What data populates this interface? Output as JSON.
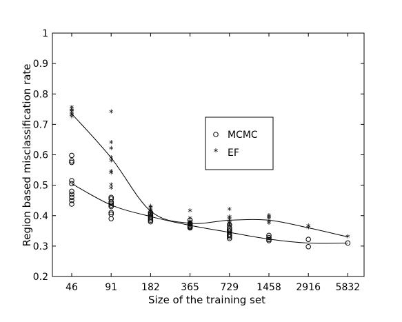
{
  "chart_data": {
    "type": "scatter",
    "xlabel": "Size of the training set",
    "ylabel": "Region based misclassification rate",
    "categories": [
      "46",
      "91",
      "182",
      "365",
      "729",
      "1458",
      "2916",
      "5832"
    ],
    "ylim": [
      0.2,
      1.0
    ],
    "yticks": [
      "0.2",
      "0.3",
      "0.4",
      "0.5",
      "0.6",
      "0.7",
      "0.8",
      "0.9",
      "1"
    ],
    "grid": false,
    "legend_position": "center-right",
    "series": [
      {
        "name": "MCMC",
        "marker": "circle",
        "trend": [
          0.505,
          0.435,
          0.397,
          0.368,
          0.345,
          0.323,
          0.31,
          0.31
        ],
        "points": [
          [
            0,
            0.598
          ],
          [
            0,
            0.58
          ],
          [
            0,
            0.575
          ],
          [
            0,
            0.515
          ],
          [
            0,
            0.505
          ],
          [
            0,
            0.48
          ],
          [
            0,
            0.47
          ],
          [
            0,
            0.46
          ],
          [
            0,
            0.45
          ],
          [
            0,
            0.438
          ],
          [
            1,
            0.46
          ],
          [
            1,
            0.455
          ],
          [
            1,
            0.445
          ],
          [
            1,
            0.44
          ],
          [
            1,
            0.435
          ],
          [
            1,
            0.43
          ],
          [
            1,
            0.41
          ],
          [
            1,
            0.405
          ],
          [
            1,
            0.39
          ],
          [
            2,
            0.41
          ],
          [
            2,
            0.405
          ],
          [
            2,
            0.4
          ],
          [
            2,
            0.395
          ],
          [
            2,
            0.39
          ],
          [
            2,
            0.385
          ],
          [
            2,
            0.38
          ],
          [
            3,
            0.385
          ],
          [
            3,
            0.375
          ],
          [
            3,
            0.372
          ],
          [
            3,
            0.368
          ],
          [
            3,
            0.365
          ],
          [
            3,
            0.362
          ],
          [
            3,
            0.36
          ],
          [
            4,
            0.37
          ],
          [
            4,
            0.36
          ],
          [
            4,
            0.355
          ],
          [
            4,
            0.35
          ],
          [
            4,
            0.345
          ],
          [
            4,
            0.34
          ],
          [
            4,
            0.335
          ],
          [
            4,
            0.33
          ],
          [
            4,
            0.325
          ],
          [
            5,
            0.335
          ],
          [
            5,
            0.328
          ],
          [
            5,
            0.322
          ],
          [
            5,
            0.318
          ],
          [
            6,
            0.322
          ],
          [
            6,
            0.298
          ],
          [
            7,
            0.31
          ]
        ]
      },
      {
        "name": "EF",
        "marker": "star",
        "trend": [
          0.735,
          0.59,
          0.415,
          0.375,
          0.385,
          0.385,
          0.36,
          0.33
        ],
        "points": [
          [
            0,
            0.755
          ],
          [
            0,
            0.75
          ],
          [
            0,
            0.745
          ],
          [
            0,
            0.74
          ],
          [
            0,
            0.735
          ],
          [
            0,
            0.73
          ],
          [
            0,
            0.725
          ],
          [
            1,
            0.74
          ],
          [
            1,
            0.64
          ],
          [
            1,
            0.62
          ],
          [
            1,
            0.59
          ],
          [
            1,
            0.58
          ],
          [
            1,
            0.545
          ],
          [
            1,
            0.54
          ],
          [
            1,
            0.5
          ],
          [
            1,
            0.49
          ],
          [
            2,
            0.43
          ],
          [
            2,
            0.425
          ],
          [
            2,
            0.42
          ],
          [
            2,
            0.415
          ],
          [
            2,
            0.41
          ],
          [
            2,
            0.405
          ],
          [
            2,
            0.4
          ],
          [
            3,
            0.415
          ],
          [
            3,
            0.39
          ],
          [
            3,
            0.38
          ],
          [
            3,
            0.375
          ],
          [
            3,
            0.37
          ],
          [
            4,
            0.42
          ],
          [
            4,
            0.395
          ],
          [
            4,
            0.39
          ],
          [
            4,
            0.385
          ],
          [
            4,
            0.38
          ],
          [
            4,
            0.375
          ],
          [
            4,
            0.37
          ],
          [
            4,
            0.365
          ],
          [
            5,
            0.4
          ],
          [
            5,
            0.395
          ],
          [
            5,
            0.39
          ],
          [
            5,
            0.38
          ],
          [
            5,
            0.375
          ],
          [
            6,
            0.365
          ],
          [
            6,
            0.36
          ],
          [
            7,
            0.33
          ]
        ]
      }
    ]
  }
}
